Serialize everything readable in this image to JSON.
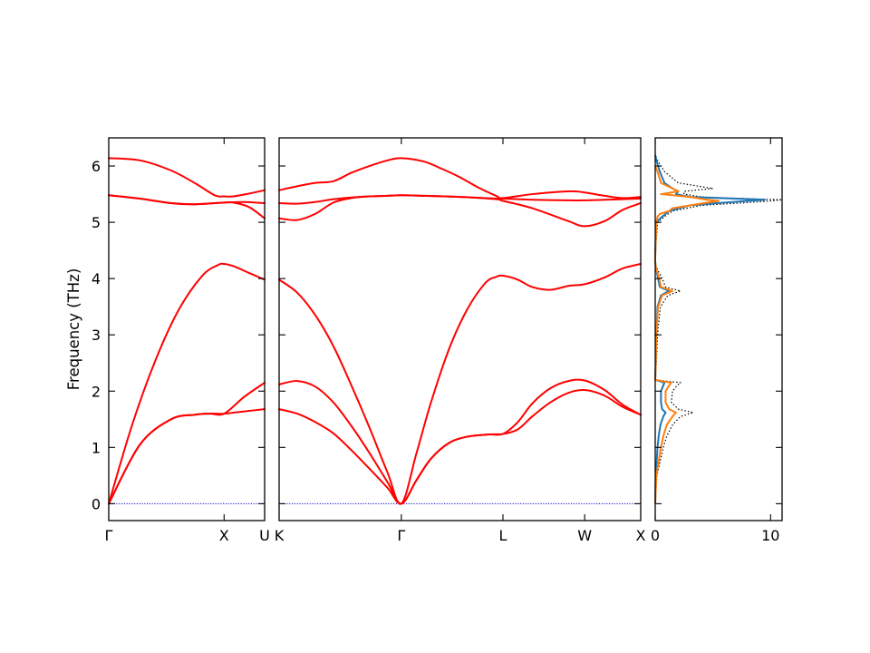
{
  "chart_data": [
    {
      "type": "line",
      "panel": "band-gamma-x-u",
      "ylabel": "Frequency (THz)",
      "ylim": [
        -0.3,
        6.5
      ],
      "yticks": [
        0,
        1,
        2,
        3,
        4,
        5,
        6
      ],
      "xlim": [
        0,
        1.0
      ],
      "xticks": [
        {
          "pos": 0.0,
          "label": "Γ"
        },
        {
          "pos": 0.74,
          "label": "X"
        },
        {
          "pos": 1.0,
          "label": "U"
        }
      ],
      "line_color": "#ff0000",
      "zero_line": true,
      "series": [
        {
          "x": [
            0,
            0.2,
            0.4,
            0.55,
            0.65,
            0.74,
            0.87,
            1.0
          ],
          "values": [
            0,
            1.05,
            1.5,
            1.58,
            1.6,
            1.6,
            1.64,
            1.68
          ]
        },
        {
          "x": [
            0,
            0.2,
            0.4,
            0.55,
            0.65,
            0.74,
            0.87,
            1.0
          ],
          "values": [
            0,
            1.05,
            1.5,
            1.58,
            1.6,
            1.6,
            1.9,
            2.15
          ]
        },
        {
          "x": [
            0,
            0.15,
            0.3,
            0.45,
            0.6,
            0.7,
            0.74,
            0.8,
            0.9,
            1.0
          ],
          "values": [
            0,
            1.4,
            2.55,
            3.45,
            4.05,
            4.24,
            4.26,
            4.22,
            4.1,
            3.98
          ]
        },
        {
          "x": [
            0,
            0.2,
            0.4,
            0.55,
            0.74,
            0.87,
            1.0
          ],
          "values": [
            5.48,
            5.42,
            5.34,
            5.32,
            5.35,
            5.36,
            5.34
          ]
        },
        {
          "x": [
            0,
            0.2,
            0.4,
            0.55,
            0.74,
            0.8,
            0.9,
            1.0
          ],
          "values": [
            5.48,
            5.42,
            5.34,
            5.32,
            5.35,
            5.35,
            5.27,
            5.07
          ]
        },
        {
          "x": [
            0,
            0.2,
            0.4,
            0.55,
            0.68,
            0.74,
            0.8,
            0.9,
            1.0
          ],
          "values": [
            6.14,
            6.1,
            5.92,
            5.7,
            5.48,
            5.46,
            5.46,
            5.51,
            5.57
          ]
        }
      ]
    },
    {
      "type": "line",
      "panel": "band-k-gamma-l-w-x",
      "ylim": [
        -0.3,
        6.5
      ],
      "xlim": [
        0,
        1.0
      ],
      "xticks": [
        {
          "pos": 0.0,
          "label": "K"
        },
        {
          "pos": 0.338,
          "label": "Γ"
        },
        {
          "pos": 0.619,
          "label": "L"
        },
        {
          "pos": 0.845,
          "label": "W"
        },
        {
          "pos": 1.0,
          "label": "X"
        }
      ],
      "line_color": "#ff0000",
      "zero_line": true,
      "series": [
        {
          "x": [
            0,
            0.05,
            0.1,
            0.15,
            0.2,
            0.25,
            0.3,
            0.338,
            0.38,
            0.42,
            0.47,
            0.52,
            0.58,
            0.619,
            0.66,
            0.7,
            0.75,
            0.8,
            0.845,
            0.9,
            0.95,
            1.0
          ],
          "values": [
            1.68,
            1.6,
            1.45,
            1.25,
            0.95,
            0.62,
            0.28,
            0,
            0.42,
            0.8,
            1.08,
            1.19,
            1.23,
            1.24,
            1.32,
            1.55,
            1.8,
            1.97,
            2.02,
            1.92,
            1.72,
            1.58
          ]
        },
        {
          "x": [
            0,
            0.05,
            0.1,
            0.15,
            0.2,
            0.25,
            0.3,
            0.338,
            0.38,
            0.42,
            0.47,
            0.52,
            0.58,
            0.619,
            0.66,
            0.7,
            0.75,
            0.8,
            0.845,
            0.9,
            0.95,
            1.0
          ],
          "values": [
            2.12,
            2.18,
            2.08,
            1.8,
            1.38,
            0.9,
            0.38,
            0,
            0.42,
            0.8,
            1.08,
            1.19,
            1.23,
            1.24,
            1.45,
            1.78,
            2.05,
            2.18,
            2.19,
            2.02,
            1.76,
            1.58
          ]
        },
        {
          "x": [
            0,
            0.05,
            0.1,
            0.15,
            0.2,
            0.25,
            0.3,
            0.338,
            0.38,
            0.42,
            0.47,
            0.52,
            0.57,
            0.6,
            0.619,
            0.66,
            0.7,
            0.75,
            0.8,
            0.845,
            0.9,
            0.95,
            1.0
          ],
          "values": [
            3.98,
            3.75,
            3.35,
            2.8,
            2.1,
            1.35,
            0.55,
            0,
            0.9,
            1.8,
            2.75,
            3.45,
            3.92,
            4.03,
            4.05,
            3.98,
            3.85,
            3.8,
            3.87,
            3.9,
            4.02,
            4.18,
            4.26
          ]
        },
        {
          "x": [
            0,
            0.05,
            0.1,
            0.15,
            0.2,
            0.25,
            0.3,
            0.338,
            0.4,
            0.5,
            0.6,
            0.619,
            0.7,
            0.8,
            0.845,
            0.9,
            0.95,
            1.0
          ],
          "values": [
            5.07,
            5.04,
            5.15,
            5.35,
            5.43,
            5.46,
            5.47,
            5.48,
            5.47,
            5.45,
            5.41,
            5.38,
            5.25,
            5.02,
            4.93,
            5.02,
            5.22,
            5.34
          ]
        },
        {
          "x": [
            0,
            0.05,
            0.1,
            0.15,
            0.2,
            0.25,
            0.3,
            0.338,
            0.4,
            0.5,
            0.6,
            0.619,
            0.7,
            0.8,
            0.845,
            0.9,
            0.95,
            1.0
          ],
          "values": [
            5.34,
            5.33,
            5.36,
            5.41,
            5.44,
            5.46,
            5.47,
            5.48,
            5.47,
            5.45,
            5.42,
            5.42,
            5.4,
            5.39,
            5.39,
            5.4,
            5.41,
            5.42
          ]
        },
        {
          "x": [
            0,
            0.05,
            0.1,
            0.15,
            0.2,
            0.25,
            0.3,
            0.338,
            0.4,
            0.45,
            0.5,
            0.55,
            0.6,
            0.619,
            0.7,
            0.8,
            0.845,
            0.9,
            0.95,
            1.0
          ],
          "values": [
            5.57,
            5.64,
            5.7,
            5.73,
            5.88,
            6.0,
            6.1,
            6.14,
            6.08,
            5.95,
            5.8,
            5.62,
            5.47,
            5.43,
            5.5,
            5.55,
            5.53,
            5.47,
            5.43,
            5.45
          ]
        }
      ]
    },
    {
      "type": "line",
      "panel": "dos",
      "orientation": "horizontal",
      "ylim": [
        -0.3,
        6.5
      ],
      "xlim": [
        0,
        11
      ],
      "xticks": [
        0,
        10
      ],
      "series": [
        {
          "color": "#1f77b4",
          "style": "solid",
          "y": [
            0,
            0.5,
            1.0,
            1.2,
            1.4,
            1.55,
            1.62,
            1.68,
            1.8,
            2.0,
            2.1,
            2.15,
            2.2,
            2.5,
            3.0,
            3.5,
            3.7,
            3.78,
            3.85,
            4.0,
            4.1,
            4.2,
            4.3,
            4.4,
            5.0,
            5.1,
            5.2,
            5.3,
            5.35,
            5.38,
            5.4,
            5.42,
            5.45,
            5.5,
            5.55,
            5.6,
            5.7,
            5.9,
            6.1,
            6.2
          ],
          "values": [
            0,
            0.05,
            0.2,
            0.3,
            0.45,
            0.7,
            0.9,
            0.6,
            0.5,
            0.5,
            0.7,
            0.8,
            0,
            0.05,
            0.1,
            0.2,
            0.5,
            1.2,
            0.4,
            0.25,
            0.15,
            0.05,
            0,
            0,
            0.1,
            0.6,
            1.2,
            3.0,
            6.0,
            8.0,
            9.5,
            7.0,
            3.0,
            1.8,
            2.0,
            1.5,
            0.8,
            0.4,
            0.1,
            0
          ]
        },
        {
          "color": "#ff7f0e",
          "style": "solid",
          "y": [
            0,
            0.5,
            1.0,
            1.2,
            1.4,
            1.55,
            1.62,
            1.68,
            1.8,
            2.0,
            2.1,
            2.15,
            2.2,
            2.5,
            3.0,
            3.5,
            3.7,
            3.78,
            3.85,
            4.0,
            4.1,
            4.2,
            4.3,
            4.4,
            5.0,
            5.1,
            5.15,
            5.2,
            5.25,
            5.3,
            5.35,
            5.38,
            5.4,
            5.45,
            5.5,
            5.55,
            5.7,
            5.9,
            6.0
          ],
          "values": [
            0,
            0.1,
            0.5,
            0.7,
            1.0,
            1.5,
            1.8,
            1.2,
            0.9,
            0.9,
            1.2,
            1.4,
            0,
            0.05,
            0.1,
            0.25,
            0.6,
            1.5,
            0.5,
            0.35,
            0.2,
            0.05,
            0,
            0,
            0.1,
            0.2,
            0.4,
            1.2,
            1.5,
            3.0,
            4.5,
            5.5,
            4.5,
            3.0,
            0.5,
            2.0,
            0.5,
            0.2,
            0
          ]
        },
        {
          "color": "#000000",
          "style": "dotted",
          "y": [
            0,
            0.5,
            1.0,
            1.2,
            1.4,
            1.55,
            1.62,
            1.68,
            1.8,
            2.0,
            2.1,
            2.15,
            2.2,
            2.5,
            3.0,
            3.5,
            3.7,
            3.78,
            3.85,
            4.0,
            4.1,
            4.2,
            4.3,
            4.4,
            5.0,
            5.1,
            5.2,
            5.3,
            5.35,
            5.38,
            5.4,
            5.42,
            5.45,
            5.5,
            5.55,
            5.6,
            5.7,
            5.9,
            6.1,
            6.2
          ],
          "values": [
            0,
            0.15,
            0.7,
            1.0,
            1.5,
            2.2,
            3.3,
            2.0,
            1.4,
            1.5,
            1.9,
            2.2,
            0,
            0.1,
            0.2,
            0.45,
            1.1,
            2.2,
            0.9,
            0.6,
            0.35,
            0.1,
            0,
            0,
            0.2,
            0.8,
            1.5,
            4.0,
            8.0,
            10.0,
            11.0,
            8.0,
            4.0,
            2.5,
            2.5,
            5.0,
            2.0,
            0.8,
            0.2,
            0
          ]
        }
      ]
    }
  ]
}
